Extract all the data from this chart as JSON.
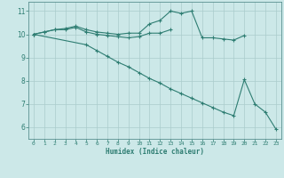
{
  "xlabel": "Humidex (Indice chaleur)",
  "x_values": [
    0,
    1,
    2,
    3,
    4,
    5,
    6,
    7,
    8,
    9,
    10,
    11,
    12,
    13,
    14,
    15,
    16,
    17,
    18,
    19,
    20,
    21,
    22,
    23
  ],
  "line1": [
    10.0,
    10.1,
    10.2,
    10.25,
    10.35,
    10.2,
    10.1,
    10.05,
    10.0,
    10.05,
    10.05,
    10.45,
    10.6,
    11.0,
    10.9,
    11.0,
    9.85,
    9.85,
    9.8,
    9.75,
    9.95,
    null,
    null,
    null
  ],
  "line2": [
    10.0,
    10.1,
    10.2,
    10.2,
    10.3,
    10.1,
    10.0,
    9.95,
    9.9,
    9.85,
    9.9,
    10.05,
    10.05,
    10.2,
    null,
    null,
    null,
    null,
    null,
    null,
    null,
    null,
    null,
    null
  ],
  "line3": [
    10.0,
    null,
    null,
    null,
    null,
    9.55,
    9.3,
    9.05,
    8.8,
    8.6,
    8.35,
    8.1,
    7.9,
    7.65,
    7.45,
    7.25,
    7.05,
    6.85,
    6.65,
    6.5,
    8.05,
    7.0,
    6.65,
    5.92
  ],
  "line_color": "#2e7d72",
  "bg_color": "#cce8e8",
  "plot_bg": "#cce8e8",
  "grid_color": "#aacccc",
  "ylim": [
    5.5,
    11.4
  ],
  "xlim": [
    -0.5,
    23.5
  ],
  "yticks": [
    6,
    7,
    8,
    9,
    10,
    11
  ],
  "xticks": [
    0,
    1,
    2,
    3,
    4,
    5,
    6,
    7,
    8,
    9,
    10,
    11,
    12,
    13,
    14,
    15,
    16,
    17,
    18,
    19,
    20,
    21,
    22,
    23
  ]
}
